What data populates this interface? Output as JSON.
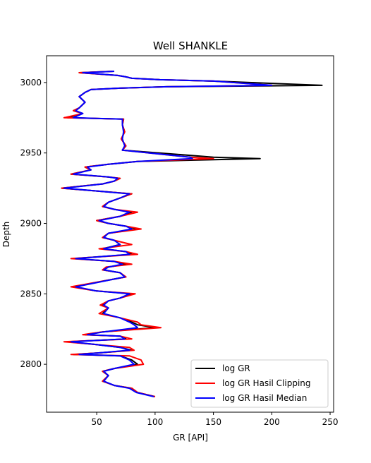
{
  "chart_data": {
    "type": "line",
    "title": "Well SHANKLE",
    "xlabel": "GR [API]",
    "ylabel": "Depth",
    "xlim": [
      7,
      253
    ],
    "ylim": [
      2766,
      3019
    ],
    "y_inverted_display": true,
    "x_ticks": [
      50,
      100,
      150,
      200,
      250
    ],
    "y_ticks": [
      2800,
      2850,
      2900,
      2950,
      3000
    ],
    "grid": false,
    "legend_position": "lower-right",
    "series": [
      {
        "name": "log GR",
        "color": "#000000",
        "points": [
          [
            65,
            3008
          ],
          [
            35,
            3007
          ],
          [
            68,
            3005
          ],
          [
            75,
            3004
          ],
          [
            80,
            3003
          ],
          [
            104,
            3002
          ],
          [
            150,
            3001
          ],
          [
            243,
            2998
          ],
          [
            110,
            2997
          ],
          [
            70,
            2996
          ],
          [
            45,
            2995
          ],
          [
            40,
            2993
          ],
          [
            35,
            2990
          ],
          [
            40,
            2986
          ],
          [
            35,
            2982
          ],
          [
            30,
            2980
          ],
          [
            38,
            2978
          ],
          [
            25,
            2975
          ],
          [
            73,
            2974
          ],
          [
            72,
            2970
          ],
          [
            74,
            2965
          ],
          [
            71,
            2960
          ],
          [
            75,
            2955
          ],
          [
            72,
            2952
          ],
          [
            150,
            2947
          ],
          [
            190,
            2946
          ],
          [
            85,
            2944
          ],
          [
            60,
            2942
          ],
          [
            40,
            2940
          ],
          [
            45,
            2938
          ],
          [
            28,
            2935
          ],
          [
            60,
            2933
          ],
          [
            70,
            2932
          ],
          [
            65,
            2930
          ],
          [
            55,
            2928
          ],
          [
            20,
            2925
          ],
          [
            50,
            2923
          ],
          [
            80,
            2921
          ],
          [
            70,
            2918
          ],
          [
            60,
            2915
          ],
          [
            55,
            2912
          ],
          [
            65,
            2910
          ],
          [
            80,
            2908
          ],
          [
            70,
            2905
          ],
          [
            50,
            2902
          ],
          [
            60,
            2900
          ],
          [
            75,
            2898
          ],
          [
            85,
            2896
          ],
          [
            60,
            2893
          ],
          [
            55,
            2890
          ],
          [
            65,
            2888
          ],
          [
            70,
            2885
          ],
          [
            55,
            2882
          ],
          [
            75,
            2880
          ],
          [
            80,
            2878
          ],
          [
            30,
            2875
          ],
          [
            65,
            2873
          ],
          [
            75,
            2871
          ],
          [
            60,
            2869
          ],
          [
            55,
            2867
          ],
          [
            70,
            2865
          ],
          [
            75,
            2862
          ],
          [
            55,
            2859
          ],
          [
            30,
            2855
          ],
          [
            50,
            2852
          ],
          [
            80,
            2850
          ],
          [
            70,
            2847
          ],
          [
            60,
            2845
          ],
          [
            55,
            2842
          ],
          [
            60,
            2840
          ],
          [
            55,
            2836
          ],
          [
            70,
            2833
          ],
          [
            80,
            2830
          ],
          [
            85,
            2828
          ],
          [
            100,
            2826
          ],
          [
            55,
            2823
          ],
          [
            40,
            2821
          ],
          [
            70,
            2820
          ],
          [
            75,
            2818
          ],
          [
            25,
            2816
          ],
          [
            50,
            2814
          ],
          [
            70,
            2812
          ],
          [
            80,
            2810
          ],
          [
            50,
            2808
          ],
          [
            30,
            2807
          ],
          [
            70,
            2806
          ],
          [
            80,
            2803
          ],
          [
            85,
            2800
          ],
          [
            65,
            2797
          ],
          [
            55,
            2795
          ],
          [
            60,
            2792
          ],
          [
            55,
            2788
          ],
          [
            65,
            2785
          ],
          [
            80,
            2783
          ],
          [
            85,
            2780
          ],
          [
            100,
            2777
          ]
        ]
      },
      {
        "name": "log GR Hasil Clipping",
        "color": "#ff0000",
        "points": [
          [
            65,
            3008
          ],
          [
            35,
            3007
          ],
          [
            68,
            3005
          ],
          [
            75,
            3004
          ],
          [
            80,
            3003
          ],
          [
            104,
            3002
          ],
          [
            150,
            3001
          ],
          [
            200,
            2998
          ],
          [
            110,
            2997
          ],
          [
            70,
            2996
          ],
          [
            45,
            2995
          ],
          [
            40,
            2993
          ],
          [
            35,
            2990
          ],
          [
            40,
            2986
          ],
          [
            35,
            2982
          ],
          [
            30,
            2980
          ],
          [
            38,
            2978
          ],
          [
            22,
            2975
          ],
          [
            73,
            2974
          ],
          [
            72,
            2970
          ],
          [
            74,
            2965
          ],
          [
            71,
            2960
          ],
          [
            75,
            2955
          ],
          [
            72,
            2952
          ],
          [
            130,
            2947
          ],
          [
            150,
            2946
          ],
          [
            85,
            2944
          ],
          [
            60,
            2942
          ],
          [
            40,
            2940
          ],
          [
            45,
            2938
          ],
          [
            28,
            2935
          ],
          [
            60,
            2933
          ],
          [
            70,
            2932
          ],
          [
            65,
            2930
          ],
          [
            55,
            2928
          ],
          [
            20,
            2925
          ],
          [
            50,
            2923
          ],
          [
            80,
            2921
          ],
          [
            70,
            2918
          ],
          [
            60,
            2915
          ],
          [
            55,
            2912
          ],
          [
            65,
            2910
          ],
          [
            85,
            2908
          ],
          [
            70,
            2905
          ],
          [
            50,
            2902
          ],
          [
            60,
            2900
          ],
          [
            75,
            2898
          ],
          [
            88,
            2896
          ],
          [
            60,
            2893
          ],
          [
            55,
            2890
          ],
          [
            65,
            2888
          ],
          [
            80,
            2885
          ],
          [
            52,
            2882
          ],
          [
            75,
            2880
          ],
          [
            85,
            2878
          ],
          [
            28,
            2875
          ],
          [
            65,
            2873
          ],
          [
            80,
            2871
          ],
          [
            58,
            2869
          ],
          [
            55,
            2867
          ],
          [
            70,
            2865
          ],
          [
            75,
            2862
          ],
          [
            55,
            2859
          ],
          [
            28,
            2855
          ],
          [
            50,
            2852
          ],
          [
            83,
            2850
          ],
          [
            70,
            2847
          ],
          [
            60,
            2845
          ],
          [
            53,
            2842
          ],
          [
            60,
            2840
          ],
          [
            52,
            2836
          ],
          [
            70,
            2833
          ],
          [
            85,
            2830
          ],
          [
            88,
            2828
          ],
          [
            105,
            2826
          ],
          [
            55,
            2823
          ],
          [
            38,
            2821
          ],
          [
            70,
            2820
          ],
          [
            80,
            2818
          ],
          [
            22,
            2816
          ],
          [
            50,
            2814
          ],
          [
            78,
            2812
          ],
          [
            82,
            2810
          ],
          [
            50,
            2808
          ],
          [
            28,
            2807
          ],
          [
            78,
            2806
          ],
          [
            88,
            2803
          ],
          [
            90,
            2800
          ],
          [
            65,
            2797
          ],
          [
            55,
            2795
          ],
          [
            60,
            2792
          ],
          [
            55,
            2788
          ],
          [
            65,
            2785
          ],
          [
            80,
            2783
          ],
          [
            85,
            2780
          ],
          [
            100,
            2777
          ]
        ]
      },
      {
        "name": "log GR Hasil Median",
        "color": "#0000ff",
        "points": [
          [
            65,
            3008
          ],
          [
            38,
            3007
          ],
          [
            68,
            3005
          ],
          [
            75,
            3004
          ],
          [
            80,
            3003
          ],
          [
            104,
            3002
          ],
          [
            150,
            3001
          ],
          [
            200,
            2998
          ],
          [
            110,
            2997
          ],
          [
            70,
            2996
          ],
          [
            45,
            2995
          ],
          [
            40,
            2993
          ],
          [
            35,
            2990
          ],
          [
            40,
            2986
          ],
          [
            35,
            2982
          ],
          [
            32,
            2980
          ],
          [
            38,
            2978
          ],
          [
            30,
            2975
          ],
          [
            72,
            2974
          ],
          [
            72,
            2970
          ],
          [
            73,
            2965
          ],
          [
            72,
            2960
          ],
          [
            74,
            2955
          ],
          [
            72,
            2952
          ],
          [
            130,
            2947
          ],
          [
            132,
            2946
          ],
          [
            85,
            2944
          ],
          [
            60,
            2942
          ],
          [
            42,
            2940
          ],
          [
            45,
            2938
          ],
          [
            30,
            2935
          ],
          [
            60,
            2933
          ],
          [
            68,
            2932
          ],
          [
            65,
            2930
          ],
          [
            55,
            2928
          ],
          [
            22,
            2925
          ],
          [
            50,
            2923
          ],
          [
            78,
            2921
          ],
          [
            70,
            2918
          ],
          [
            60,
            2915
          ],
          [
            56,
            2912
          ],
          [
            65,
            2910
          ],
          [
            78,
            2908
          ],
          [
            70,
            2905
          ],
          [
            52,
            2902
          ],
          [
            60,
            2900
          ],
          [
            75,
            2898
          ],
          [
            80,
            2896
          ],
          [
            60,
            2893
          ],
          [
            56,
            2890
          ],
          [
            65,
            2888
          ],
          [
            70,
            2885
          ],
          [
            56,
            2882
          ],
          [
            75,
            2880
          ],
          [
            78,
            2878
          ],
          [
            32,
            2875
          ],
          [
            65,
            2873
          ],
          [
            72,
            2871
          ],
          [
            60,
            2869
          ],
          [
            56,
            2867
          ],
          [
            70,
            2865
          ],
          [
            74,
            2862
          ],
          [
            56,
            2859
          ],
          [
            32,
            2855
          ],
          [
            50,
            2852
          ],
          [
            78,
            2850
          ],
          [
            70,
            2847
          ],
          [
            60,
            2845
          ],
          [
            56,
            2842
          ],
          [
            60,
            2840
          ],
          [
            56,
            2836
          ],
          [
            70,
            2833
          ],
          [
            78,
            2830
          ],
          [
            82,
            2828
          ],
          [
            85,
            2826
          ],
          [
            56,
            2823
          ],
          [
            42,
            2821
          ],
          [
            70,
            2820
          ],
          [
            74,
            2818
          ],
          [
            28,
            2816
          ],
          [
            50,
            2814
          ],
          [
            70,
            2812
          ],
          [
            78,
            2810
          ],
          [
            50,
            2808
          ],
          [
            35,
            2807
          ],
          [
            70,
            2806
          ],
          [
            78,
            2803
          ],
          [
            82,
            2800
          ],
          [
            65,
            2797
          ],
          [
            56,
            2795
          ],
          [
            60,
            2792
          ],
          [
            56,
            2788
          ],
          [
            65,
            2785
          ],
          [
            78,
            2783
          ],
          [
            84,
            2780
          ],
          [
            99,
            2777
          ]
        ]
      }
    ]
  }
}
